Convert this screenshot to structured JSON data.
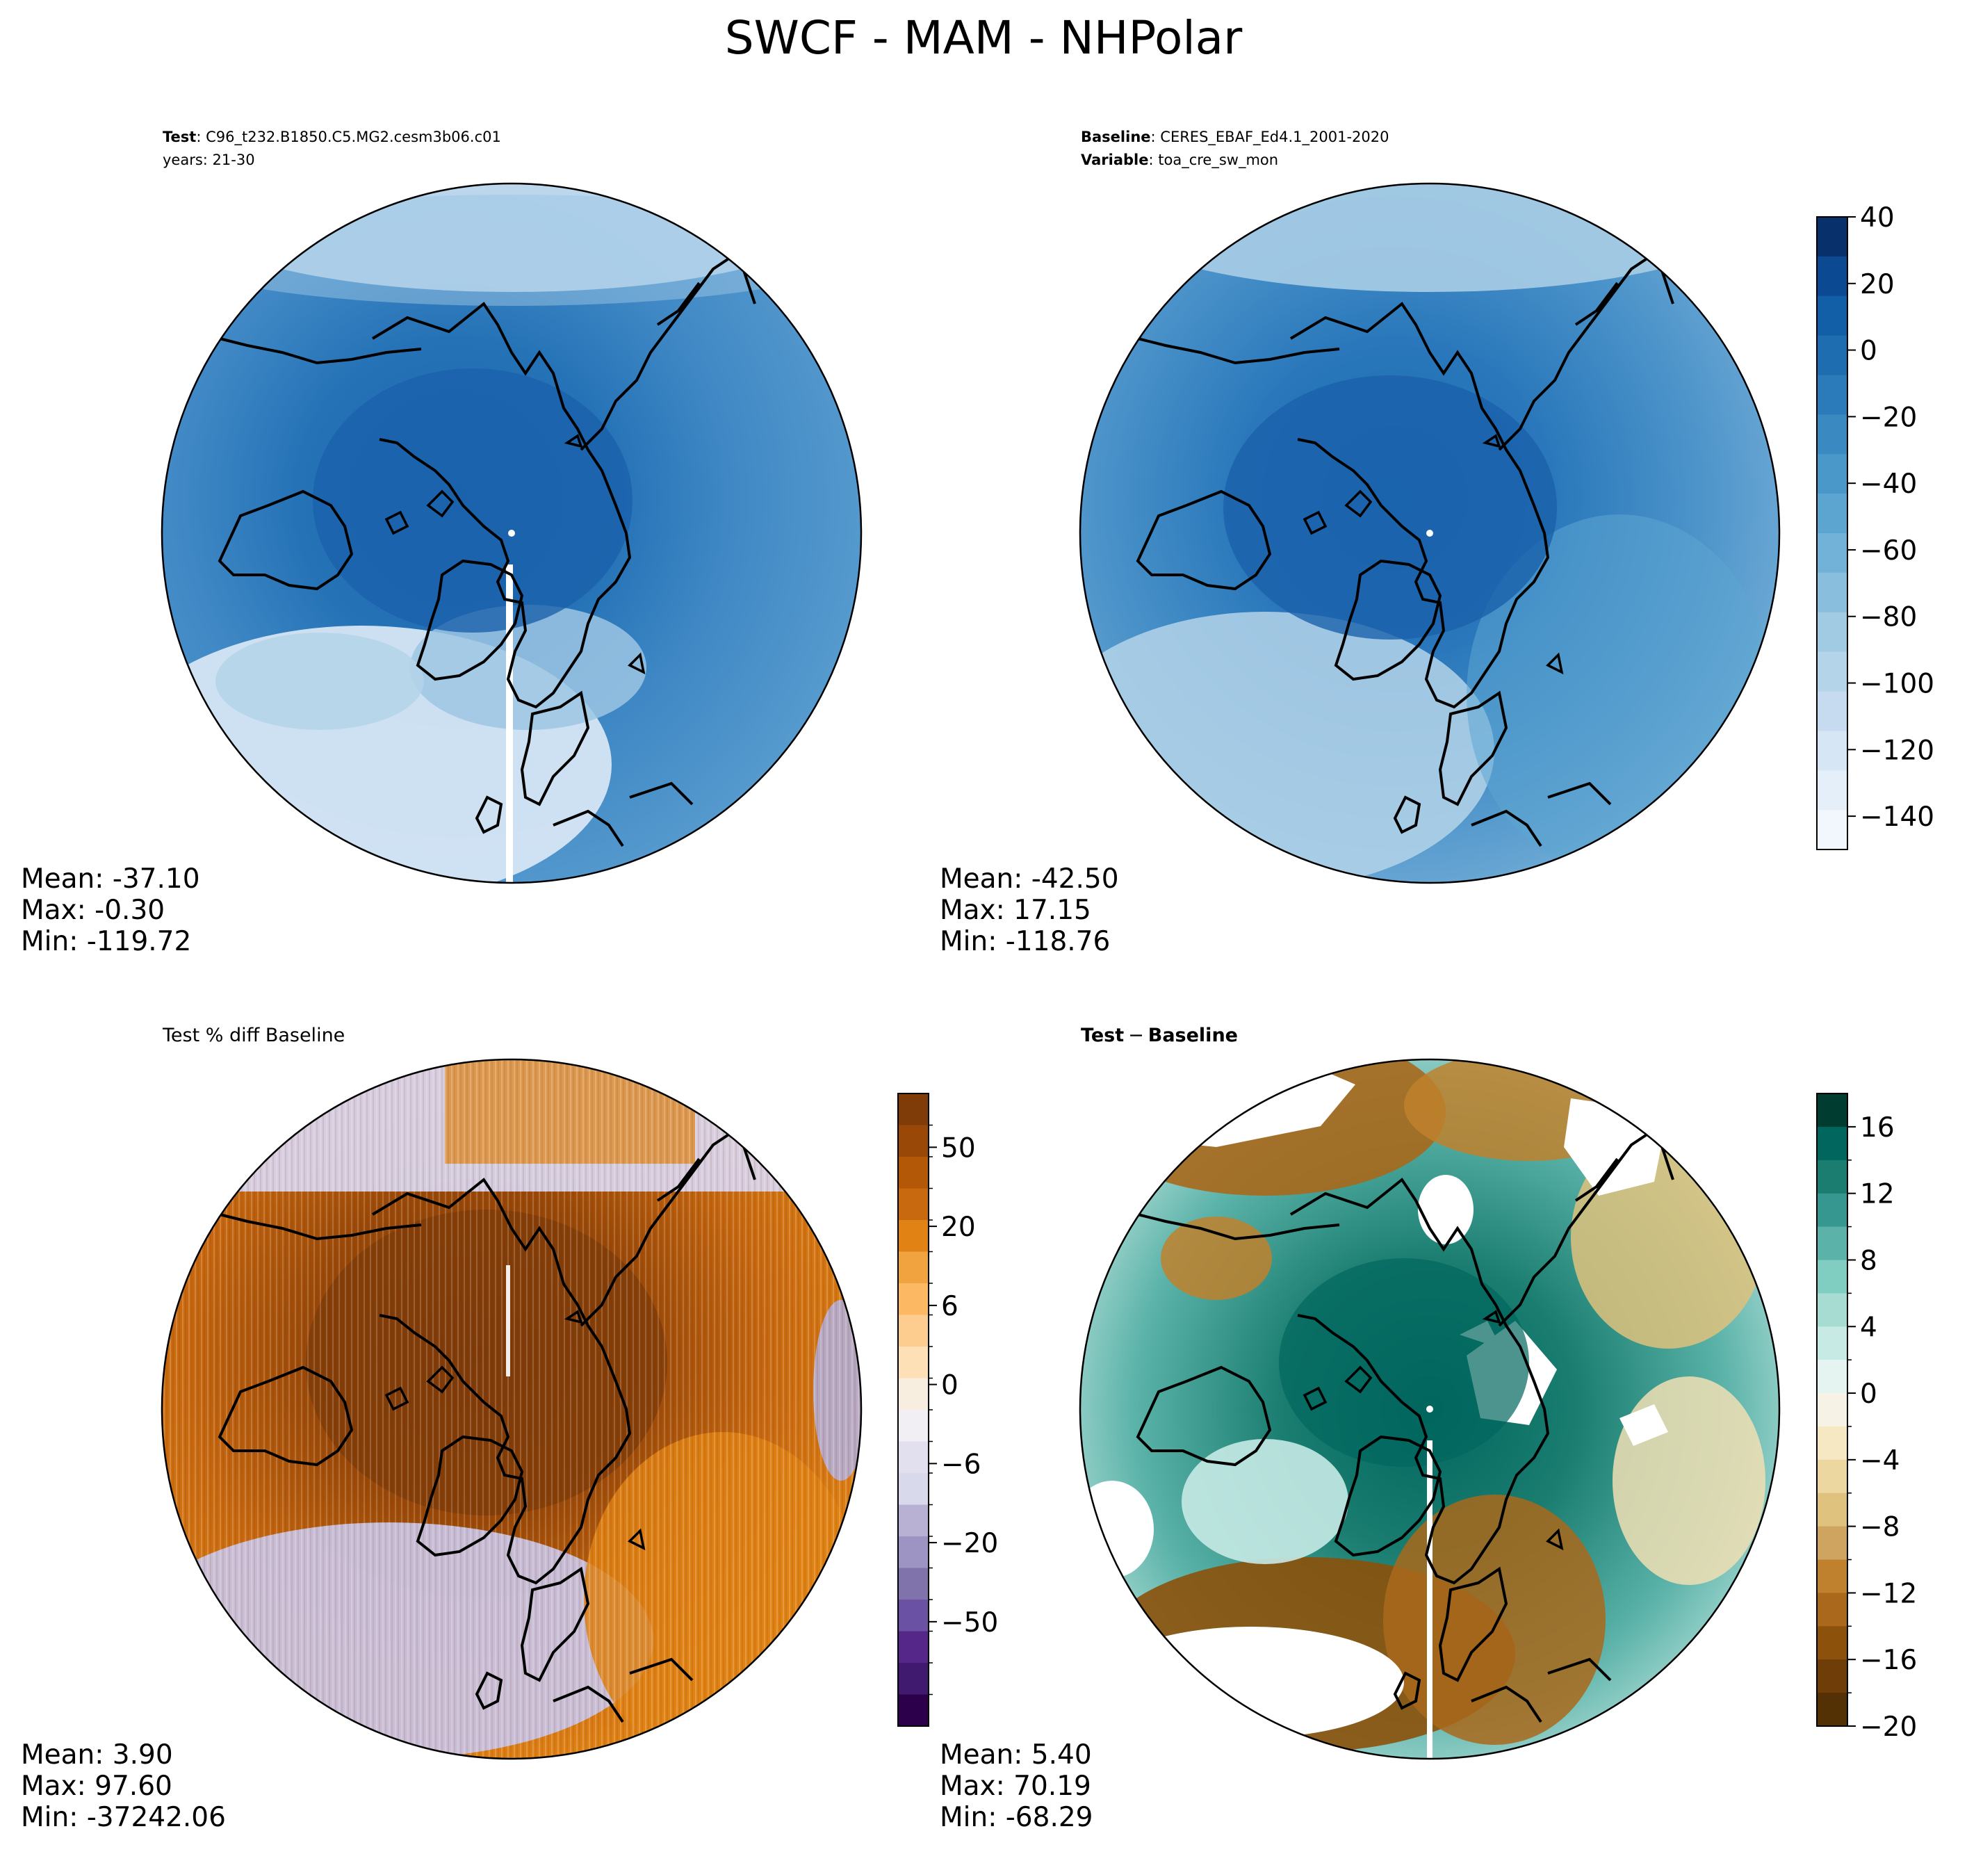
{
  "figure": {
    "title": "SWCF - MAM - NHPolar"
  },
  "panels": {
    "test": {
      "label_key": "Test",
      "label_value": "C96_t232.B1850.C5.MG2.cesm3b06.c01",
      "years": "years: 21-30",
      "stats": {
        "mean": "Mean: -37.10",
        "max": "Max: -0.30",
        "min": "Min: -119.72"
      }
    },
    "baseline": {
      "label_key": "Baseline",
      "label_value": "CERES_EBAF_Ed4.1_2001-2020",
      "variable_key": "Variable",
      "variable_value": "toa_cre_sw_mon",
      "stats": {
        "mean": "Mean: -42.50",
        "max": "Max: 17.15",
        "min": "Min: -118.76"
      }
    },
    "pct_diff": {
      "title": "Test % diff Baseline",
      "stats": {
        "mean": "Mean:  3.90",
        "max": "Max: 97.60",
        "min": "Min: -37242.06"
      }
    },
    "diff": {
      "title_a": "Test",
      "title_op": "−",
      "title_b": "Baseline",
      "stats": {
        "mean": "Mean:  5.40",
        "max": "Max: 70.19",
        "min": "Min: -68.29"
      }
    }
  },
  "colorbars": {
    "blues": {
      "ticks": [
        "40",
        "20",
        "0",
        "−20",
        "−40",
        "−60",
        "−80",
        "−100",
        "−120",
        "−140"
      ],
      "colors": [
        "#08306b",
        "#0b4a93",
        "#135fa7",
        "#1f6db1",
        "#2b7bba",
        "#3a89c1",
        "#4a98c9",
        "#5da5d1",
        "#73b2d8",
        "#89bedc",
        "#a0cbe2",
        "#b4d4e9",
        "#c6dbef",
        "#d6e6f4",
        "#e4eff9",
        "#f1f7fd"
      ]
    },
    "pct": {
      "ticks": [
        "50",
        "20",
        "6",
        "0",
        "−6",
        "−20",
        "−50"
      ],
      "colors": [
        "#7f3b08",
        "#9a4807",
        "#b35806",
        "#c8680f",
        "#e08214",
        "#f1a340",
        "#fdb863",
        "#fdcc8f",
        "#fee0b6",
        "#f7eee0",
        "#f2eff4",
        "#e2dfee",
        "#d8daeb",
        "#b8b1d4",
        "#9e94c4",
        "#8073ac",
        "#6a51a3",
        "#542788",
        "#3f1a6e",
        "#2d004b"
      ]
    },
    "diff": {
      "ticks": [
        "16",
        "12",
        "8",
        "4",
        "0",
        "−4",
        "−8",
        "−12",
        "−16",
        "−20"
      ],
      "colors": [
        "#003c30",
        "#01665e",
        "#1a7d70",
        "#35978f",
        "#5ab2a8",
        "#80cdc1",
        "#a6dcd1",
        "#c7eae5",
        "#e6f4f1",
        "#f6f2e6",
        "#f6e8c3",
        "#ecd7a0",
        "#dfc27d",
        "#cfa460",
        "#bf812d",
        "#a9681b",
        "#8c510a",
        "#6f3d07",
        "#543005"
      ]
    }
  },
  "map_colors": {
    "arctic_core": "#1d68b0",
    "mid_blue": "#3f88c5",
    "light_blue": "#8bbee0",
    "very_light_blue": "#c9def0",
    "base_core": "#1c69b2",
    "base_mid": "#3a86c4",
    "base_light": "#9ec7e3",
    "pct_core": "#7f3b08",
    "pct_mid": "#c8680f",
    "pct_light": "#e08214",
    "pct_purple": "#b5aed6",
    "diff_teal_core": "#01665e",
    "diff_teal_mid": "#35978f",
    "diff_teal_light": "#9fd9cc",
    "diff_brown_core": "#8c510a",
    "diff_brown_mid": "#bf812d",
    "diff_tan": "#f0dfb4"
  }
}
